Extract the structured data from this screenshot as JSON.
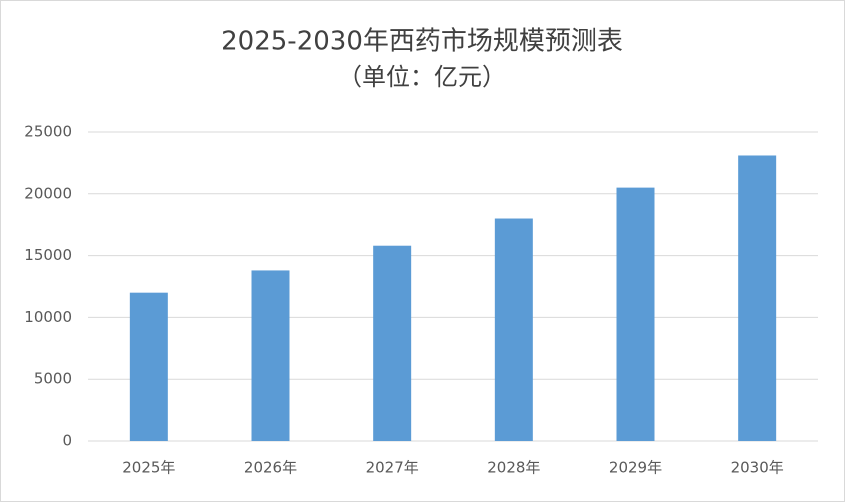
{
  "chart_data": {
    "type": "bar",
    "title": "2025-2030年西药市场规模预测表",
    "subtitle": "（单位：亿元）",
    "categories": [
      "2025年",
      "2026年",
      "2027年",
      "2028年",
      "2029年",
      "2030年"
    ],
    "values": [
      12000,
      13800,
      15800,
      18000,
      20500,
      23100
    ],
    "color": "#5b9bd5",
    "ylim": [
      0,
      25000
    ],
    "yticks": [
      0,
      5000,
      10000,
      15000,
      20000,
      25000
    ],
    "grid": true
  }
}
